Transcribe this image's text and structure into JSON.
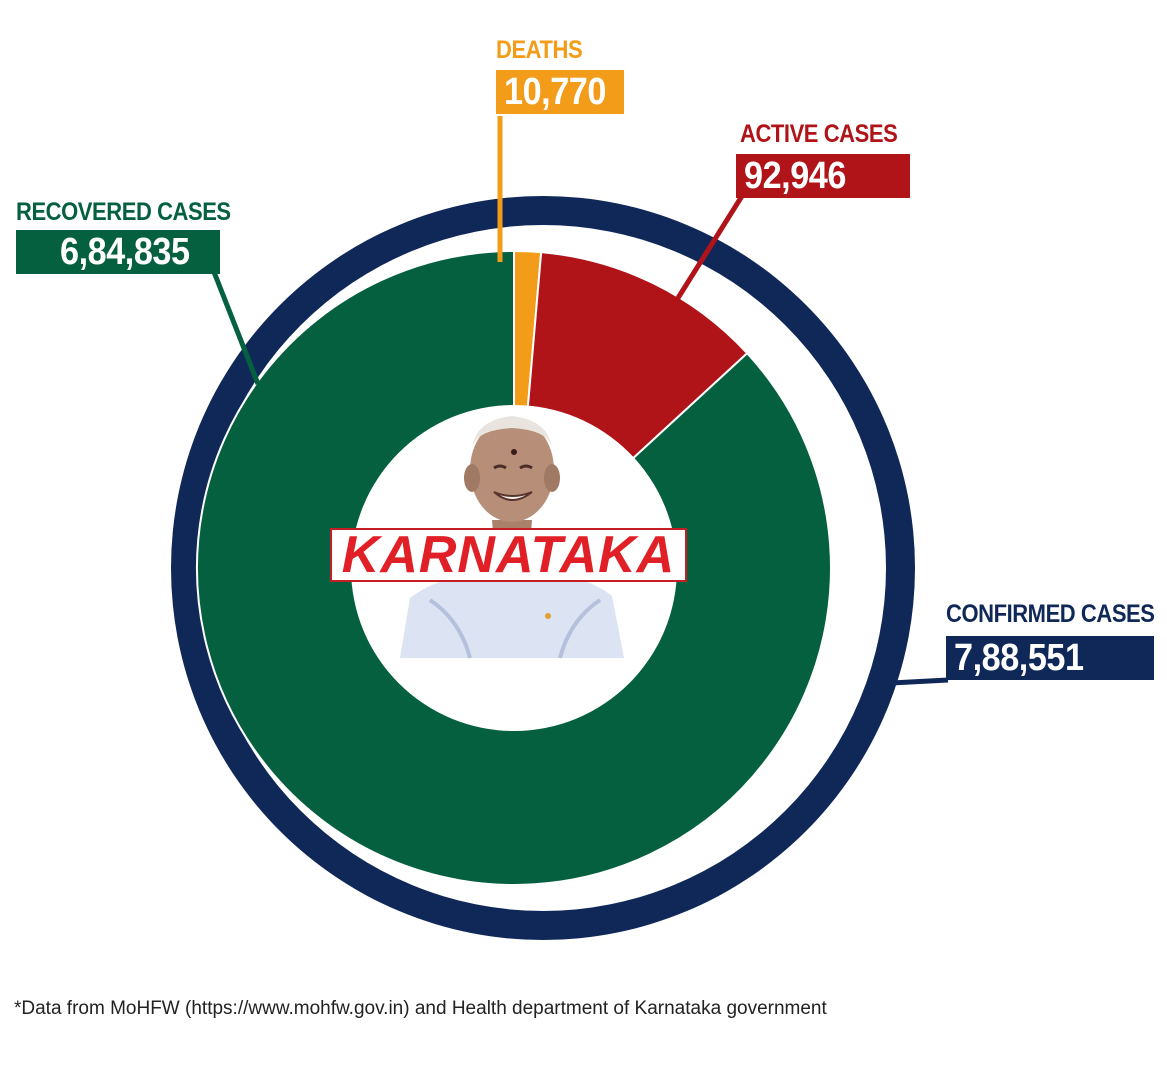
{
  "chart_data": {
    "type": "pie",
    "title": "KARNATAKA",
    "outer_ring": {
      "label": "CONFIRMED CASES",
      "value": 788551,
      "display": "7,88,551",
      "color": "#0f2858"
    },
    "slices": [
      {
        "label": "RECOVERED CASES",
        "value": 684835,
        "display": "6,84,835",
        "color": "#056040"
      },
      {
        "label": "DEATHS",
        "value": 10770,
        "display": "10,770",
        "color": "#f39c1a"
      },
      {
        "label": "ACTIVE CASES",
        "value": 92946,
        "display": "92,946",
        "color": "#b01318"
      }
    ],
    "legend": "callouts"
  },
  "footnote": "*Data from MoHFW (https://www.mohfw.gov.in) and Health department of Karnataka government"
}
